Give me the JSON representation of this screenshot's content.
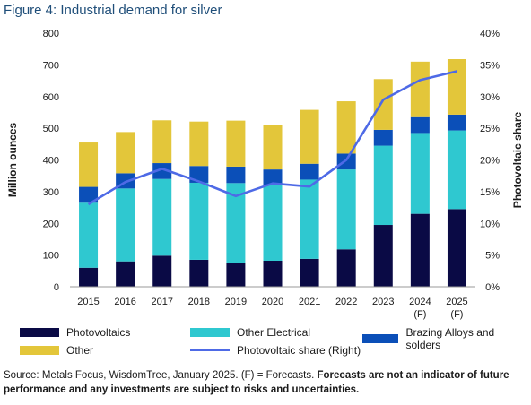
{
  "title": "Figure 4: Industrial demand for silver",
  "chart_data": {
    "type": "bar",
    "stacked": true,
    "categories": [
      "2015",
      "2016",
      "2017",
      "2018",
      "2019",
      "2020",
      "2021",
      "2022",
      "2023",
      "2024\n(F)",
      "2025\n(F)"
    ],
    "series": [
      {
        "name": "Photovoltaics",
        "color": "#0a0a45",
        "values": [
          60,
          80,
          98,
          85,
          75,
          82,
          88,
          118,
          195,
          230,
          245
        ]
      },
      {
        "name": "Other Electrical",
        "color": "#2fc8d0",
        "values": [
          205,
          230,
          242,
          243,
          252,
          240,
          250,
          252,
          250,
          255,
          248
        ]
      },
      {
        "name": "Brazing Alloys and solders",
        "color": "#0b4fb8",
        "values": [
          50,
          48,
          50,
          53,
          52,
          48,
          50,
          50,
          50,
          50,
          50
        ]
      },
      {
        "name": "Other",
        "color": "#e3c63a",
        "values": [
          140,
          130,
          135,
          140,
          145,
          140,
          170,
          165,
          160,
          175,
          175
        ]
      }
    ],
    "line_series": {
      "name": "Photovoltaic share (Right)",
      "color": "#4e6ae6",
      "axis": "right",
      "values": [
        13.0,
        16.5,
        18.6,
        16.6,
        14.3,
        16.3,
        15.8,
        20.0,
        29.5,
        32.6,
        34.0
      ]
    },
    "ylabel": "Million ounces",
    "y2label": "Photovoltaic share",
    "ylim": [
      0,
      800
    ],
    "yticks": [
      "0",
      "100",
      "200",
      "300",
      "400",
      "500",
      "600",
      "700",
      "800"
    ],
    "y2lim": [
      0,
      40
    ],
    "y2ticks": [
      "0%",
      "5%",
      "10%",
      "15%",
      "20%",
      "25%",
      "30%",
      "35%",
      "40%"
    ],
    "grid": false,
    "legend_position": "bottom"
  },
  "legend": {
    "photovoltaics": "Photovoltaics",
    "other_electrical": "Other Electrical",
    "brazing": "Brazing Alloys and solders",
    "other": "Other",
    "pv_share": "Photovoltaic share (Right)"
  },
  "source": {
    "text": "Source: Metals Focus, WisdomTree, January 2025. (F) = Forecasts. ",
    "bold": "Forecasts are not an indicator of future performance and any investments are subject to risks and uncertainties."
  }
}
